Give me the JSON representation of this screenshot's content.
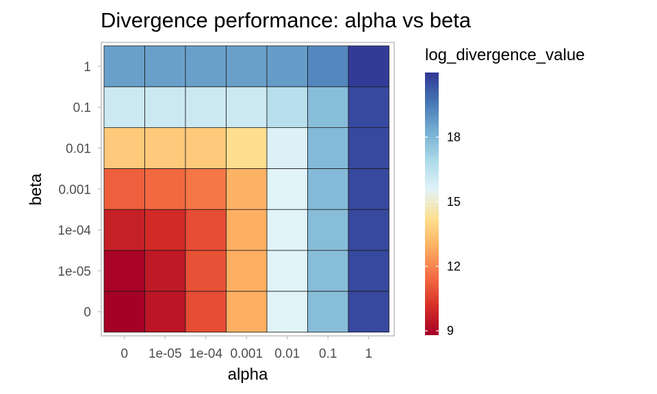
{
  "chart_data": {
    "type": "heatmap",
    "title": "Divergence performance: alpha vs beta",
    "xlabel": "alpha",
    "ylabel": "beta",
    "x_categories": [
      "0",
      "1e-05",
      "1e-04",
      "0.001",
      "0.01",
      "0.1",
      "1"
    ],
    "y_categories": [
      "0",
      "1e-05",
      "1e-04",
      "0.001",
      "0.01",
      "0.1",
      "1"
    ],
    "values": [
      [
        8.8,
        9.4,
        10.8,
        12.9,
        15.6,
        17.8,
        20.6
      ],
      [
        8.9,
        9.5,
        10.9,
        12.9,
        15.6,
        17.8,
        20.6
      ],
      [
        9.7,
        10.0,
        10.8,
        12.9,
        15.6,
        17.8,
        20.6
      ],
      [
        11.2,
        11.4,
        11.7,
        13.0,
        15.6,
        17.9,
        20.6
      ],
      [
        13.6,
        13.6,
        13.6,
        14.2,
        15.7,
        17.9,
        20.6
      ],
      [
        16.1,
        16.1,
        16.1,
        16.1,
        16.6,
        17.8,
        20.6
      ],
      [
        18.6,
        18.6,
        18.6,
        18.6,
        18.7,
        19.2,
        20.9
      ]
    ],
    "color_scale": {
      "name": "log_divergence_value",
      "min": 8.8,
      "max": 21.0,
      "ticks": [
        9,
        12,
        15,
        18
      ],
      "palette": [
        "#a50026",
        "#d73027",
        "#f46d43",
        "#fdae61",
        "#fee090",
        "#e0f3f8",
        "#abd9e9",
        "#74add1",
        "#4575b4",
        "#313695"
      ]
    },
    "grid": true,
    "legend_position": "right"
  }
}
